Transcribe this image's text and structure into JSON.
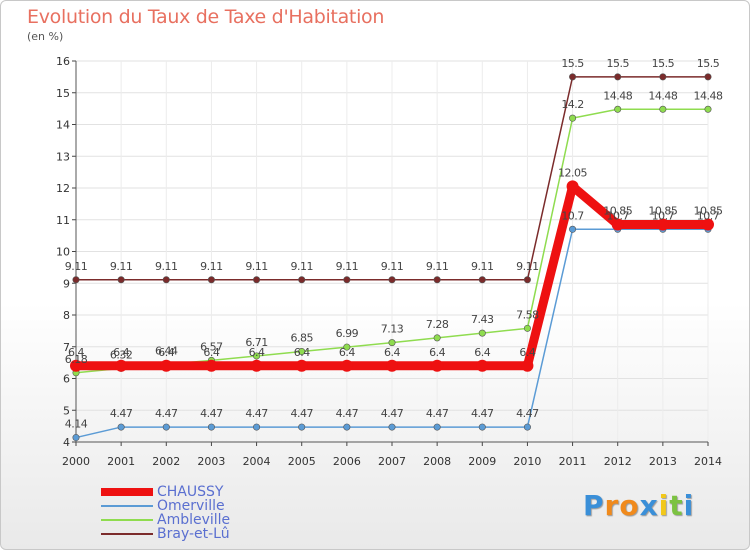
{
  "chart_data": {
    "type": "line",
    "title": "Evolution du Taux de Taxe d'Habitation",
    "subtitle": "(en %)",
    "xlabel": "",
    "ylabel": "",
    "ylim": [
      4,
      16
    ],
    "yticks": [
      "4",
      "5",
      "6",
      "7",
      "8",
      "9",
      "10",
      "11",
      "12",
      "13",
      "14",
      "15",
      "16"
    ],
    "categories": [
      "2000",
      "2001",
      "2002",
      "2003",
      "2004",
      "2005",
      "2006",
      "2007",
      "2008",
      "2009",
      "2010",
      "2011",
      "2012",
      "2013",
      "2014"
    ],
    "grid": true,
    "legend_position": "bottom-left",
    "series": [
      {
        "name": "CHAUSSY",
        "color": "#ee1111",
        "values": [
          6.4,
          6.4,
          6.4,
          6.4,
          6.4,
          6.4,
          6.4,
          6.4,
          6.4,
          6.4,
          6.4,
          12.05,
          10.85,
          10.85,
          10.85
        ],
        "labels": [
          "6.4",
          "6.4",
          "6.4",
          "6.4",
          "6.4",
          "6.4",
          "6.4",
          "6.4",
          "6.4",
          "6.4",
          "6.4",
          "12.05",
          "10.85",
          "10.85",
          "10.85"
        ]
      },
      {
        "name": "Omerville",
        "color": "#5b9bd5",
        "values": [
          4.14,
          4.47,
          4.47,
          4.47,
          4.47,
          4.47,
          4.47,
          4.47,
          4.47,
          4.47,
          4.47,
          10.7,
          10.7,
          10.7,
          10.7
        ],
        "labels": [
          "4.14",
          "4.47",
          "4.47",
          "4.47",
          "4.47",
          "4.47",
          "4.47",
          "4.47",
          "4.47",
          "4.47",
          "4.47",
          "10.7",
          "10.7",
          "10.7",
          "10.7"
        ]
      },
      {
        "name": "Ambleville",
        "color": "#8fdc4f",
        "values": [
          6.18,
          6.32,
          6.44,
          6.57,
          6.71,
          6.85,
          6.99,
          7.13,
          7.28,
          7.43,
          7.58,
          14.2,
          14.48,
          14.48,
          14.48
        ],
        "labels": [
          "6.18",
          "6.32",
          "6.44",
          "6.57",
          "6.71",
          "6.85",
          "6.99",
          "7.13",
          "7.28",
          "7.43",
          "7.58",
          "14.2",
          "14.48",
          "14.48",
          "14.48"
        ]
      },
      {
        "name": "Bray-et-Lû",
        "color": "#7b2b2b",
        "values": [
          9.11,
          9.11,
          9.11,
          9.11,
          9.11,
          9.11,
          9.11,
          9.11,
          9.11,
          9.11,
          9.11,
          15.5,
          15.5,
          15.5,
          15.5
        ],
        "labels": [
          "9.11",
          "9.11",
          "9.11",
          "9.11",
          "9.11",
          "9.11",
          "9.11",
          "9.11",
          "9.11",
          "9.11",
          "9.11",
          "15.5",
          "15.5",
          "15.5",
          "15.5"
        ]
      }
    ]
  },
  "legend": {
    "items": [
      {
        "label": "CHAUSSY",
        "color": "#ee1111"
      },
      {
        "label": "Omerville",
        "color": "#5b9bd5"
      },
      {
        "label": "Ambleville",
        "color": "#8fdc4f"
      },
      {
        "label": "Bray-et-Lû",
        "color": "#7b2b2b"
      }
    ]
  },
  "logo": {
    "letters": [
      "P",
      "r",
      "o",
      "x",
      "i",
      "t",
      "i"
    ],
    "colors": [
      "#3a8fd8",
      "#f08a1c",
      "#f08a1c",
      "#3a8fd8",
      "#f2c81a",
      "#7cc242",
      "#3a8fd8"
    ]
  }
}
